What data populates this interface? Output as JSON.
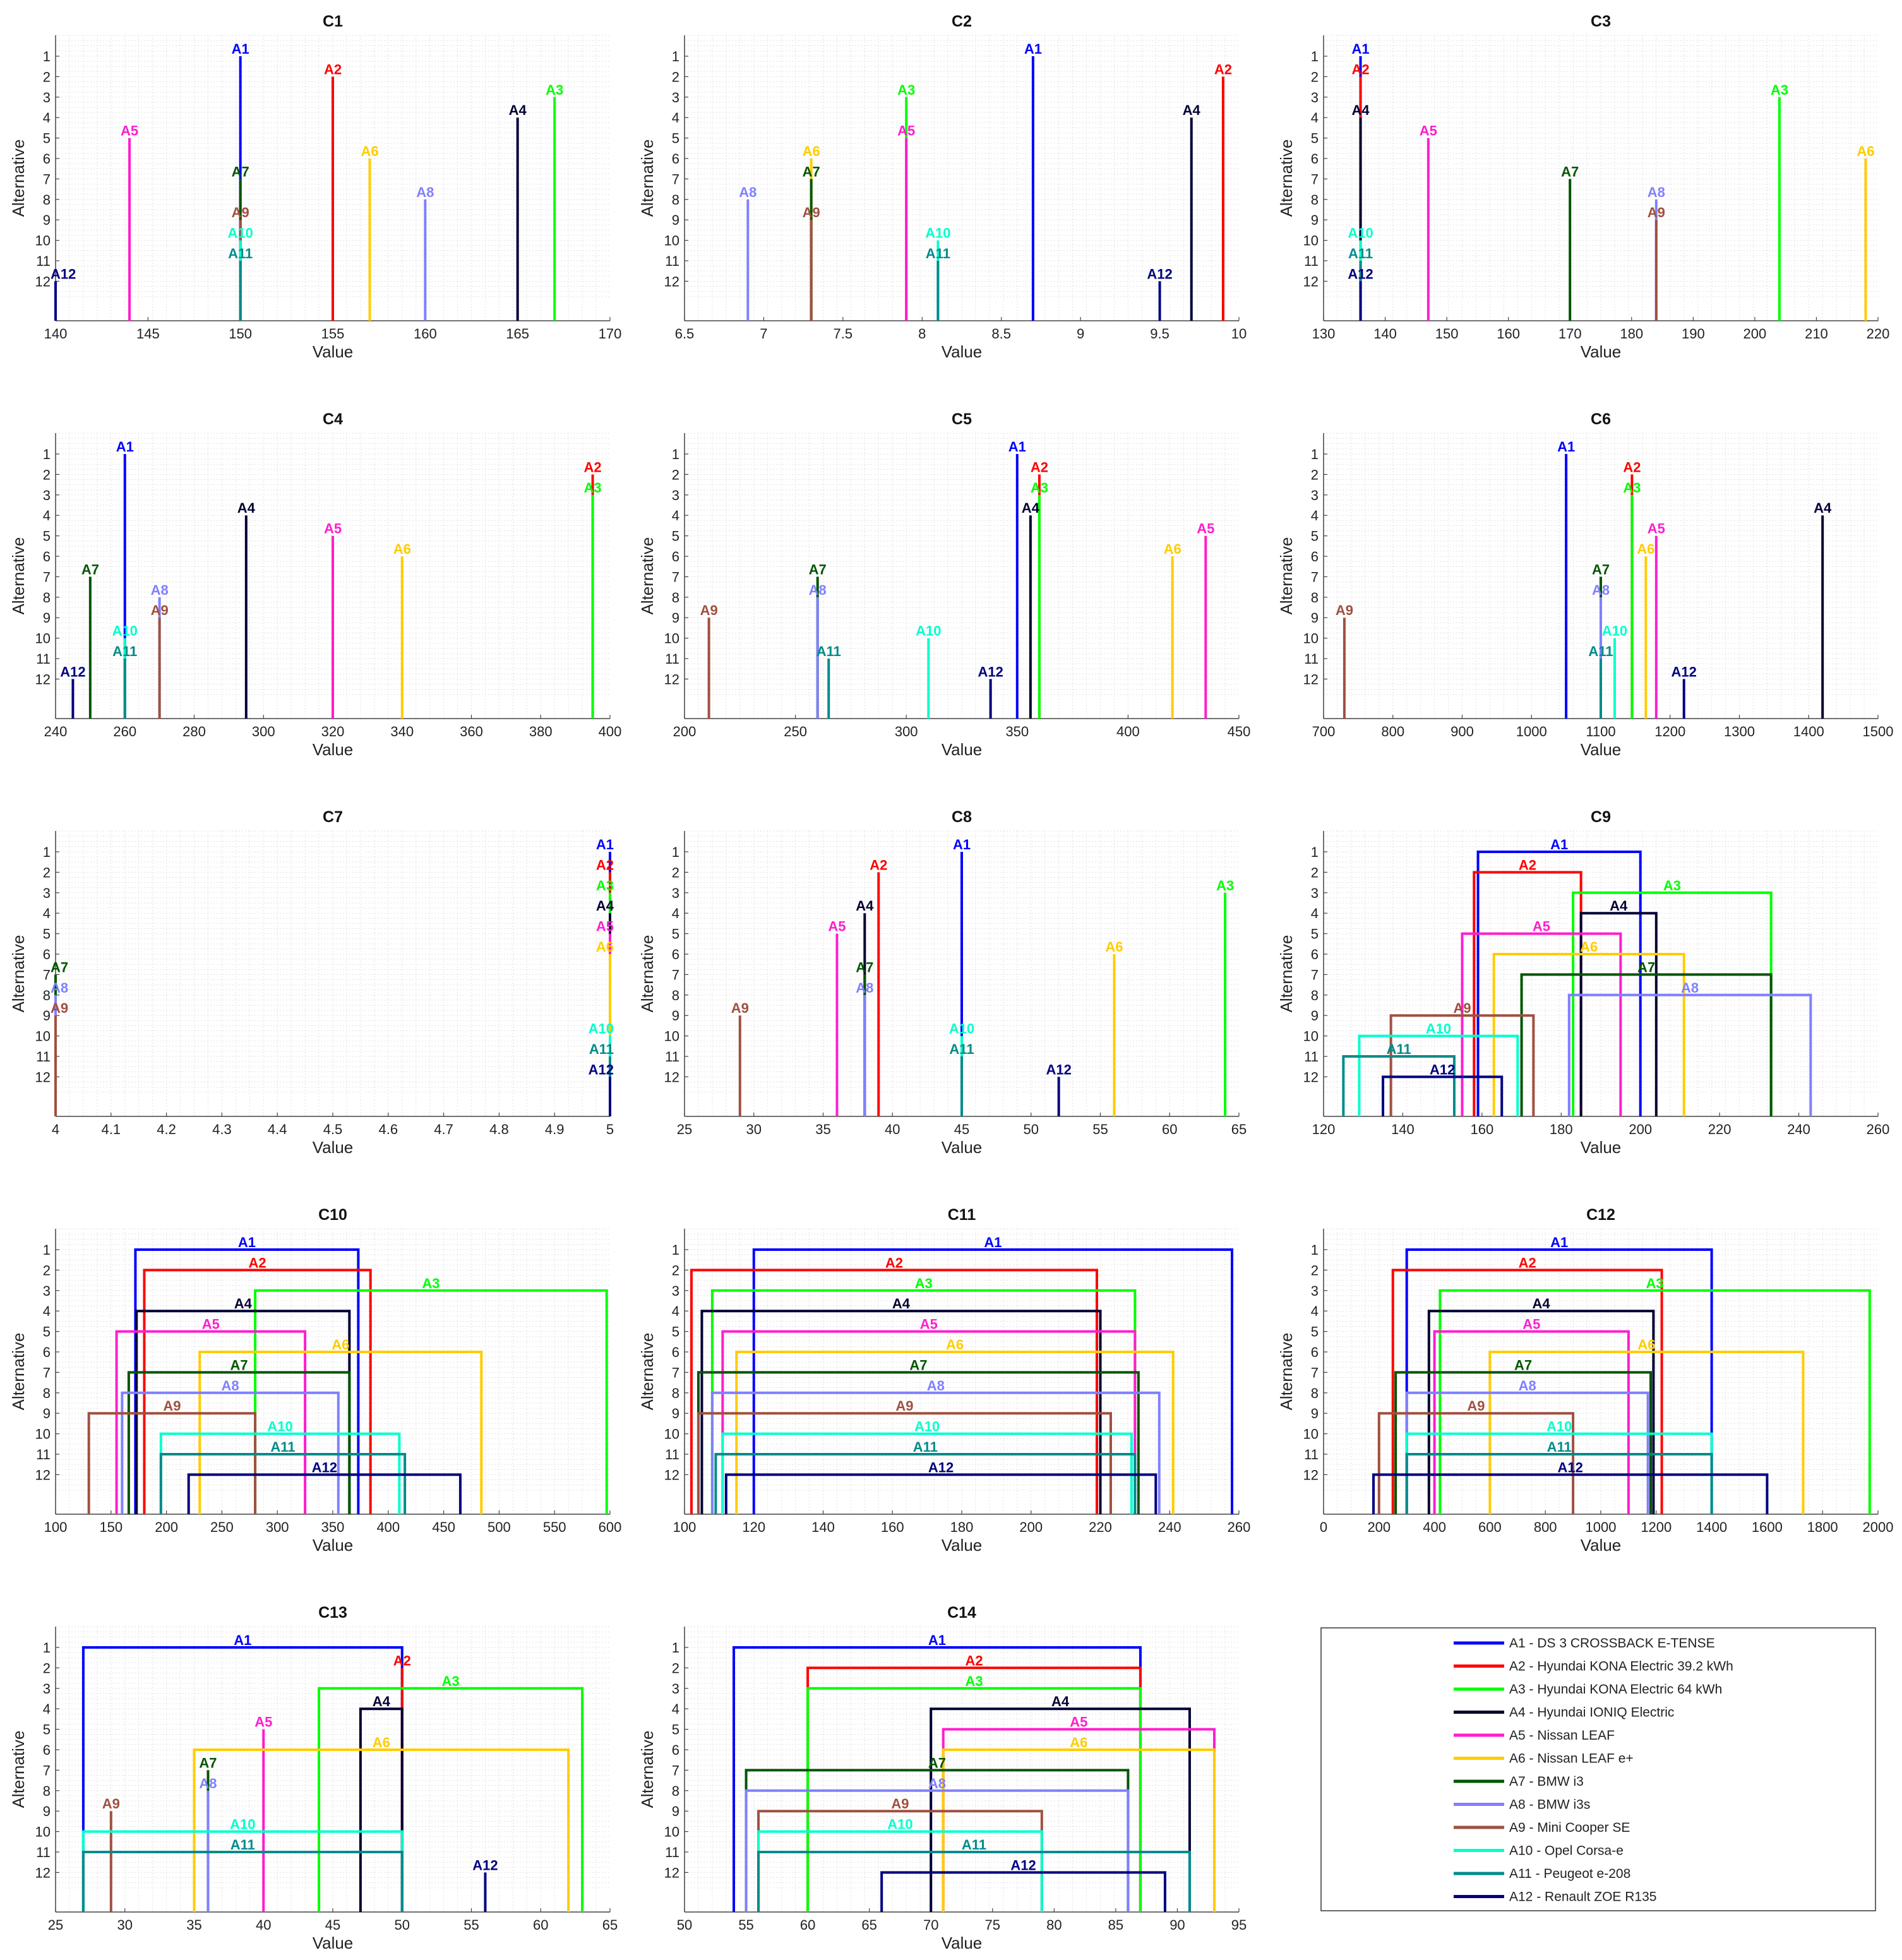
{
  "colors": {
    "A1": "#0000ff",
    "A2": "#ff0000",
    "A3": "#00ff00",
    "A4": "#000033",
    "A5": "#ff1dce",
    "A6": "#ffcc00",
    "A7": "#005500",
    "A8": "#8080ff",
    "A9": "#a05040",
    "A10": "#00ffcc",
    "A11": "#008b8b",
    "A12": "#000080"
  },
  "legend": {
    "position": "bottom-right",
    "entries": [
      {
        "id": "A1",
        "label": "A1 - DS 3 CROSSBACK E-TENSE"
      },
      {
        "id": "A2",
        "label": "A2 - Hyundai KONA Electric 39.2 kWh"
      },
      {
        "id": "A3",
        "label": "A3 - Hyundai KONA Electric 64 kWh"
      },
      {
        "id": "A4",
        "label": "A4 - Hyundai IONIQ Electric"
      },
      {
        "id": "A5",
        "label": "A5 - Nissan LEAF"
      },
      {
        "id": "A6",
        "label": "A6 - Nissan LEAF e+"
      },
      {
        "id": "A7",
        "label": "A7 - BMW i3"
      },
      {
        "id": "A8",
        "label": "A8 - BMW i3s"
      },
      {
        "id": "A9",
        "label": "A9 - Mini Cooper SE"
      },
      {
        "id": "A10",
        "label": "A10 - Opel Corsa-e"
      },
      {
        "id": "A11",
        "label": "A11 - Peugeot e-208"
      },
      {
        "id": "A12",
        "label": "A12 - Renault ZOE R135"
      }
    ]
  },
  "chart_data": [
    {
      "type": "stem",
      "title": "C1",
      "xlabel": "Value",
      "ylabel": "Alternative",
      "xlim": [
        140,
        170
      ],
      "xticks": [
        140,
        145,
        150,
        155,
        160,
        165,
        170
      ],
      "values": [
        150,
        155,
        167,
        165,
        144,
        157,
        150,
        160,
        150,
        150,
        150,
        140
      ]
    },
    {
      "type": "stem",
      "title": "C2",
      "xlabel": "Value",
      "ylabel": "Alternative",
      "xlim": [
        6.5,
        10
      ],
      "xticks": [
        6.5,
        7,
        7.5,
        8,
        8.5,
        9,
        9.5,
        10
      ],
      "values": [
        8.7,
        9.9,
        7.9,
        9.7,
        7.9,
        7.3,
        7.3,
        6.9,
        7.3,
        8.1,
        8.1,
        9.5
      ]
    },
    {
      "type": "stem",
      "title": "C3",
      "xlabel": "Value",
      "ylabel": "Alternative",
      "xlim": [
        130,
        220
      ],
      "xticks": [
        130,
        140,
        150,
        160,
        170,
        180,
        190,
        200,
        210,
        220
      ],
      "values": [
        136,
        136,
        204,
        136,
        147,
        218,
        170,
        184,
        184,
        136,
        136,
        136
      ]
    },
    {
      "type": "stem",
      "title": "C4",
      "xlabel": "Value",
      "ylabel": "Alternative",
      "xlim": [
        240,
        400
      ],
      "xticks": [
        240,
        260,
        280,
        300,
        320,
        340,
        360,
        380,
        400
      ],
      "values": [
        260,
        395,
        395,
        295,
        320,
        340,
        250,
        270,
        270,
        260,
        260,
        245
      ]
    },
    {
      "type": "stem",
      "title": "C5",
      "xlabel": "Value",
      "ylabel": "Alternative",
      "xlim": [
        200,
        450
      ],
      "xticks": [
        200,
        250,
        300,
        350,
        400,
        450
      ],
      "values": [
        350,
        360,
        360,
        356,
        435,
        420,
        260,
        260,
        211,
        310,
        265,
        338
      ]
    },
    {
      "type": "stem",
      "title": "C6",
      "xlabel": "Value",
      "ylabel": "Alternative",
      "xlim": [
        700,
        1500
      ],
      "xticks": [
        700,
        800,
        900,
        1000,
        1100,
        1200,
        1300,
        1400,
        1500
      ],
      "values": [
        1050,
        1145,
        1145,
        1420,
        1180,
        1165,
        1100,
        1100,
        730,
        1120,
        1100,
        1220
      ]
    },
    {
      "type": "stem",
      "title": "C7",
      "xlabel": "Value",
      "ylabel": "Alternative",
      "xlim": [
        4,
        5
      ],
      "xticks": [
        4,
        4.1,
        4.2,
        4.3,
        4.4,
        4.5,
        4.6,
        4.7,
        4.8,
        4.9,
        5
      ],
      "xtick_labels": [
        "4",
        "4.1",
        "4.2",
        "4.3",
        "4.4",
        "4.5",
        "4.6",
        "4.7",
        "4.8",
        "4.9",
        "5"
      ],
      "values": [
        5,
        5,
        5,
        5,
        5,
        5,
        4,
        4,
        4,
        5,
        5,
        5
      ]
    },
    {
      "type": "stem",
      "title": "C8",
      "xlabel": "Value",
      "ylabel": "Alternative",
      "xlim": [
        25,
        65
      ],
      "xticks": [
        25,
        30,
        35,
        40,
        45,
        50,
        55,
        60,
        65
      ],
      "values": [
        45,
        39,
        64,
        38,
        36,
        56,
        38,
        38,
        29,
        45,
        45,
        52
      ]
    },
    {
      "type": "interval",
      "title": "C9",
      "xlabel": "Value",
      "ylabel": "Alternative",
      "xlim": [
        120,
        260
      ],
      "xticks": [
        120,
        140,
        160,
        180,
        200,
        220,
        240,
        260
      ],
      "intervals": [
        [
          159,
          200
        ],
        [
          158,
          185
        ],
        [
          183,
          233
        ],
        [
          185,
          204
        ],
        [
          155,
          195
        ],
        [
          163,
          211
        ],
        [
          170,
          233
        ],
        [
          182,
          243
        ],
        [
          137,
          173
        ],
        [
          129,
          169
        ],
        [
          125,
          153
        ],
        [
          135,
          165
        ]
      ]
    },
    {
      "type": "interval",
      "title": "C10",
      "xlabel": "Value",
      "ylabel": "Alternative",
      "xlim": [
        100,
        600
      ],
      "xticks": [
        100,
        150,
        200,
        250,
        300,
        350,
        400,
        450,
        500,
        550,
        600
      ],
      "intervals": [
        [
          172,
          373
        ],
        [
          180,
          384
        ],
        [
          280,
          597
        ],
        [
          173,
          365
        ],
        [
          155,
          325
        ],
        [
          230,
          484
        ],
        [
          166,
          365
        ],
        [
          160,
          355
        ],
        [
          130,
          280
        ],
        [
          195,
          410
        ],
        [
          195,
          415
        ],
        [
          220,
          465
        ]
      ]
    },
    {
      "type": "interval",
      "title": "C11",
      "xlabel": "Value",
      "ylabel": "Alternative",
      "xlim": [
        100,
        260
      ],
      "xticks": [
        100,
        120,
        140,
        160,
        180,
        200,
        220,
        240,
        260
      ],
      "intervals": [
        [
          120,
          258
        ],
        [
          102,
          219
        ],
        [
          108,
          230
        ],
        [
          105,
          220
        ],
        [
          111,
          230
        ],
        [
          115,
          241
        ],
        [
          104,
          231
        ],
        [
          108,
          237
        ],
        [
          104,
          223
        ],
        [
          111,
          229
        ],
        [
          109,
          230
        ],
        [
          112,
          236
        ]
      ]
    },
    {
      "type": "interval",
      "title": "C12",
      "xlabel": "Value",
      "ylabel": "Alternative",
      "xlim": [
        0,
        2000
      ],
      "xticks": [
        0,
        200,
        400,
        600,
        800,
        1000,
        1200,
        1400,
        1600,
        1800,
        2000
      ],
      "intervals": [
        [
          300,
          1400
        ],
        [
          250,
          1220
        ],
        [
          420,
          1970
        ],
        [
          380,
          1190
        ],
        [
          400,
          1100
        ],
        [
          600,
          1730
        ],
        [
          260,
          1180
        ],
        [
          300,
          1170
        ],
        [
          200,
          900
        ],
        [
          300,
          1400
        ],
        [
          300,
          1400
        ],
        [
          180,
          1600
        ]
      ]
    },
    {
      "type": "interval",
      "title": "C13",
      "xlabel": "Value",
      "ylabel": "Alternative",
      "xlim": [
        25,
        65
      ],
      "xticks": [
        25,
        30,
        35,
        40,
        45,
        50,
        55,
        60,
        65
      ],
      "intervals": [
        [
          27,
          50
        ],
        [
          50,
          50
        ],
        [
          44,
          63
        ],
        [
          47,
          50
        ],
        [
          40,
          40
        ],
        [
          35,
          62
        ],
        [
          36,
          36
        ],
        [
          36,
          36
        ],
        [
          29,
          29
        ],
        [
          27,
          50
        ],
        [
          27,
          50
        ],
        [
          56,
          56
        ]
      ]
    },
    {
      "type": "interval",
      "title": "C14",
      "xlabel": "Value",
      "ylabel": "Alternative",
      "xlim": [
        50,
        95
      ],
      "xticks": [
        50,
        55,
        60,
        65,
        70,
        75,
        80,
        85,
        90,
        95
      ],
      "intervals": [
        [
          54,
          87
        ],
        [
          60,
          87
        ],
        [
          60,
          87
        ],
        [
          70,
          91
        ],
        [
          71,
          93
        ],
        [
          71,
          93
        ],
        [
          55,
          86
        ],
        [
          55,
          86
        ],
        [
          56,
          79
        ],
        [
          56,
          79
        ],
        [
          56,
          91
        ],
        [
          66,
          89
        ]
      ]
    }
  ]
}
